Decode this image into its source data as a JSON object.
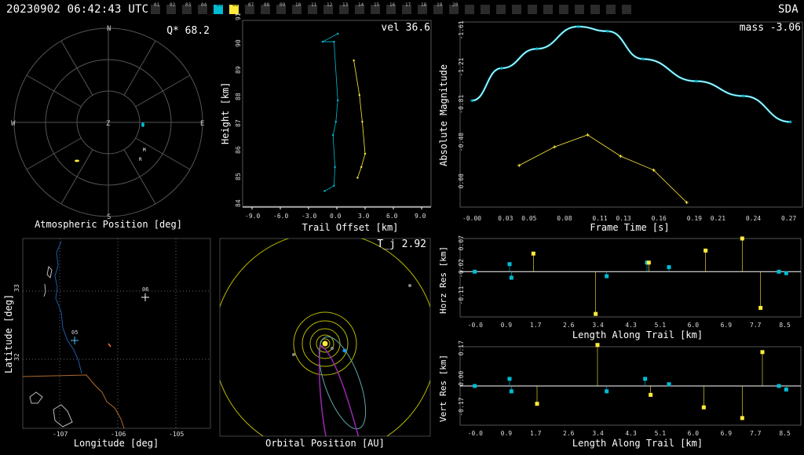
{
  "header": {
    "timestamp": "20230902 06:42:43 UTC",
    "station": "SDA",
    "camera_ids": [
      "01",
      "02",
      "03",
      "04",
      "05",
      "06",
      "07",
      "08",
      "09",
      "10",
      "11",
      "12",
      "13",
      "14",
      "15",
      "16",
      "17",
      "18",
      "19",
      "20"
    ],
    "camera_colors": {
      "05": "#00bcd4",
      "06": "#ffeb3b"
    },
    "extra_swatches": 11
  },
  "sky_plot": {
    "value": "Q* 68.2",
    "title": "Atmospheric Position [deg]",
    "compass": [
      "N",
      "E",
      "S",
      "W",
      "Z"
    ],
    "markers": [
      "M",
      "R"
    ]
  },
  "trail_plot": {
    "value": "vel 36.6",
    "ylabel": "Height [km]",
    "xlabel": "Trail Offset [km]",
    "yticks": [
      "84",
      "85",
      "86",
      "87",
      "88",
      "89",
      "90",
      "91"
    ],
    "xticks": [
      "-9.0",
      "-6.0",
      "-3.0",
      "0.0",
      "3.0",
      "6.0",
      "9.0"
    ]
  },
  "mag_plot": {
    "value": "mass -3.06",
    "ylabel": "Absolute Magnitude",
    "xlabel": "Frame Time [s]",
    "yticks": [
      "-1.61",
      "-1.21",
      "-0.81",
      "-0.40",
      "0.00"
    ],
    "xticks": [
      "-0.00",
      "0.03",
      "0.05",
      "0.08",
      "0.11",
      "0.13",
      "0.16",
      "0.19",
      "0.21",
      "0.24",
      "0.27"
    ]
  },
  "map_plot": {
    "ylabel": "Latitude [deg]",
    "xlabel": "Longitude [deg]",
    "yticks": [
      "33",
      "32"
    ],
    "xticks": [
      "-107",
      "-106",
      "-105"
    ],
    "stations": [
      "06",
      "05"
    ]
  },
  "orbit_plot": {
    "value": "T_j 2.92",
    "title": "Orbital Position [AU]"
  },
  "horz_res": {
    "ylabel": "Horz Res [km]",
    "xlabel": "Length Along Trail [km]",
    "yticks": [
      "0.07",
      "-0.02",
      "-0.11"
    ],
    "xticks": [
      "-0.0",
      "0.9",
      "1.7",
      "2.6",
      "3.4",
      "4.3",
      "5.1",
      "6.0",
      "6.9",
      "7.7",
      "8.5"
    ]
  },
  "vert_res": {
    "ylabel": "Vert Res [km]",
    "xlabel": "Length Along Trail [km]",
    "yticks": [
      "0.17",
      "0.00",
      "-0.17"
    ],
    "xticks": [
      "-0.0",
      "0.9",
      "1.7",
      "2.6",
      "3.4",
      "4.3",
      "5.1",
      "6.0",
      "6.9",
      "7.7",
      "8.5"
    ]
  },
  "chart_data": [
    {
      "type": "line",
      "title": "vel 36.6",
      "xlabel": "Trail Offset [km]",
      "ylabel": "Height [km]",
      "xlim": [
        -10,
        10
      ],
      "ylim": [
        84,
        91
      ],
      "series": [
        {
          "name": "05",
          "x": [
            0.1,
            -1.5,
            -0.3,
            0.1,
            -0.1,
            -0.4,
            -0.2,
            -0.3,
            -1.3
          ],
          "y": [
            90.5,
            90.2,
            90.2,
            88.0,
            87.2,
            86.7,
            85.5,
            84.8,
            84.6
          ]
        },
        {
          "name": "06",
          "x": [
            1.8,
            2.4,
            2.7,
            3.0,
            2.6,
            2.2
          ],
          "y": [
            89.5,
            88.2,
            87.2,
            86.0,
            85.5,
            85.1
          ]
        }
      ]
    },
    {
      "type": "line",
      "title": "mass -3.06",
      "xlabel": "Frame Time [s]",
      "ylabel": "Absolute Magnitude",
      "xlim": [
        -0.01,
        0.28
      ],
      "ylim": [
        0.2,
        -1.8
      ],
      "series": [
        {
          "name": "05",
          "x": [
            0.0,
            0.025,
            0.055,
            0.09,
            0.115,
            0.145,
            0.19,
            0.23,
            0.27
          ],
          "y": [
            -0.95,
            -1.3,
            -1.51,
            -1.75,
            -1.7,
            -1.4,
            -1.16,
            -1.0,
            -0.72
          ]
        },
        {
          "name": "06",
          "x": [
            0.04,
            0.07,
            0.098,
            0.126,
            0.154,
            0.182
          ],
          "y": [
            -0.25,
            -0.45,
            -0.58,
            -0.35,
            -0.2,
            0.15
          ]
        }
      ]
    },
    {
      "type": "scatter",
      "title": "",
      "xlabel": "Length Along Trail [km]",
      "ylabel": "Horz Res [km]",
      "xlim": [
        -0.4,
        8.9
      ],
      "ylim": [
        -0.15,
        0.11
      ],
      "series": [
        {
          "name": "05",
          "x": [
            0.0,
            0.95,
            1.0,
            3.6,
            4.7,
            5.3,
            8.3,
            8.5
          ],
          "y": [
            0.0,
            0.025,
            -0.02,
            -0.015,
            0.03,
            0.015,
            0.0,
            -0.005
          ]
        },
        {
          "name": "06",
          "x": [
            1.6,
            3.3,
            4.75,
            6.3,
            7.3,
            7.8
          ],
          "y": [
            0.06,
            -0.14,
            0.03,
            0.07,
            0.11,
            -0.12
          ]
        }
      ]
    },
    {
      "type": "scatter",
      "title": "",
      "xlabel": "Length Along Trail [km]",
      "ylabel": "Vert Res [km]",
      "xlim": [
        -0.4,
        8.9
      ],
      "ylim": [
        -0.22,
        0.22
      ],
      "series": [
        {
          "name": "05",
          "x": [
            0.0,
            0.95,
            1.0,
            3.6,
            4.65,
            5.3,
            8.3,
            8.5
          ],
          "y": [
            0.0,
            0.04,
            -0.03,
            -0.03,
            0.04,
            0.01,
            0.0,
            -0.02
          ]
        },
        {
          "name": "06",
          "x": [
            1.7,
            3.35,
            4.8,
            6.25,
            7.3,
            7.85
          ],
          "y": [
            -0.1,
            0.23,
            -0.05,
            -0.12,
            -0.18,
            0.19
          ]
        }
      ]
    }
  ]
}
